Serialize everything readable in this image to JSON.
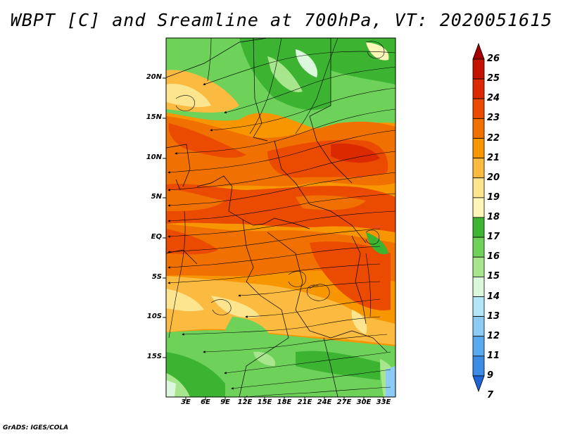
{
  "title": "WBPT [C] and Sreamline at 700hPa, VT: 2020051615",
  "credit": "GrADS: IGES/COLA",
  "latitude_labels": [
    "20N",
    "15N",
    "10N",
    "5N",
    "EQ",
    "5S",
    "10S",
    "15S"
  ],
  "longitude_labels": [
    "3E",
    "6E",
    "9E",
    "12E",
    "15E",
    "18E",
    "21E",
    "24E",
    "27E",
    "30E",
    "33E"
  ],
  "colorbar": {
    "labels": [
      "26",
      "25",
      "24",
      "23",
      "22",
      "21",
      "20",
      "19",
      "18",
      "17",
      "16",
      "15",
      "14",
      "13",
      "12",
      "11",
      "9",
      "7"
    ],
    "colors": [
      "#a50000",
      "#c41400",
      "#dc2a00",
      "#ea4b00",
      "#f07000",
      "#f79600",
      "#fbba40",
      "#fde590",
      "#fff6b8",
      "#3cb432",
      "#6ed25a",
      "#a8e68e",
      "#dcf8dc",
      "#b4e6fa",
      "#8ccbf5",
      "#5aaaef",
      "#3c8ce6",
      "#1e64d7"
    ]
  },
  "wbpt_field": {
    "units": "C",
    "pressure_level": "700hPa",
    "valid_time": "2020051615",
    "regions": [
      {
        "area": "northeast (Sudan / Ethiopian highlands)",
        "value_range": "16-18"
      },
      {
        "area": "west Sahel band near 12N-14N",
        "value_range": "21-23"
      },
      {
        "area": "central band 0N-10N",
        "value_range": "21-24"
      },
      {
        "area": "east-central near 28E-32E, 2S-8S",
        "value_range": "22-24"
      },
      {
        "area": "south near 8S-15S",
        "value_range": "18-20"
      },
      {
        "area": "far south 15S",
        "value_range": "16-17"
      }
    ]
  }
}
